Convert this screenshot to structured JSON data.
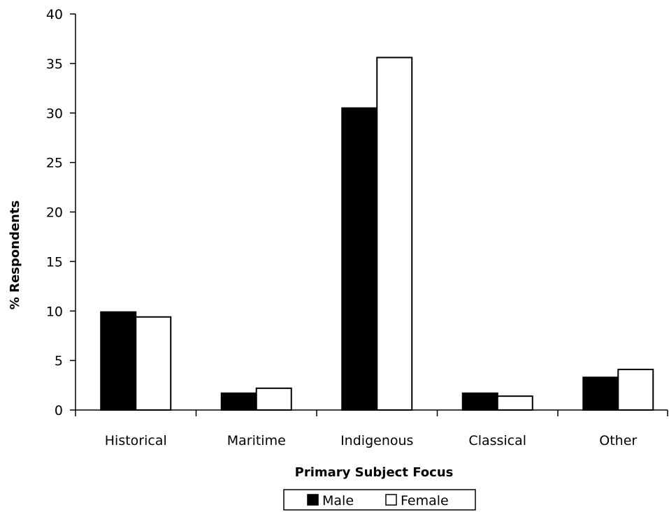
{
  "chart_data": {
    "type": "bar",
    "categories": [
      "Historical",
      "Maritime",
      "Indigenous",
      "Classical",
      "Other"
    ],
    "series": [
      {
        "name": "Male",
        "values": [
          9.9,
          1.7,
          30.5,
          1.7,
          3.3
        ],
        "color": "#000000"
      },
      {
        "name": "Female",
        "values": [
          9.4,
          2.2,
          35.6,
          1.4,
          4.1
        ],
        "color": "#ffffff"
      }
    ],
    "xlabel": "Primary Subject Focus",
    "ylabel": "% Respondents",
    "ylim": [
      0,
      40
    ],
    "yticks": [
      0,
      5,
      10,
      15,
      20,
      25,
      30,
      35,
      40
    ],
    "grid": false,
    "legend": "bottom"
  }
}
